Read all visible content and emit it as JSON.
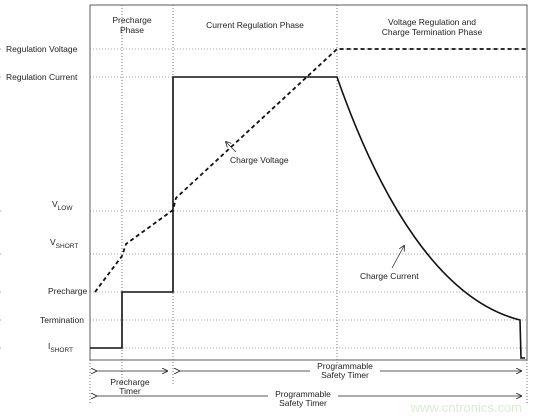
{
  "phases": [
    {
      "lines": [
        "Precharge",
        "Phase"
      ]
    },
    {
      "lines": [
        "Current Regulation Phase"
      ]
    },
    {
      "lines": [
        "Voltage Regulation and",
        "Charge Termination Phase"
      ]
    }
  ],
  "levels": [
    {
      "label": "Regulation Voltage"
    },
    {
      "label": "Regulation Current"
    },
    {
      "main": "V",
      "sub": "LOW"
    },
    {
      "main": "V",
      "sub": "SHORT"
    },
    {
      "label": "Precharge"
    },
    {
      "label": "Termination"
    },
    {
      "main": "I",
      "sub": "SHORT"
    }
  ],
  "annotations": {
    "voltage": "Charge Voltage",
    "current": "Charge Current"
  },
  "timers": [
    {
      "lines": [
        "Precharge",
        "Timer"
      ]
    },
    {
      "lines": [
        "Programmable",
        "Safety Timer"
      ]
    },
    {
      "lines": [
        "Programmable",
        "Safety Timer"
      ]
    }
  ],
  "watermark": "www.cntronics.com"
}
